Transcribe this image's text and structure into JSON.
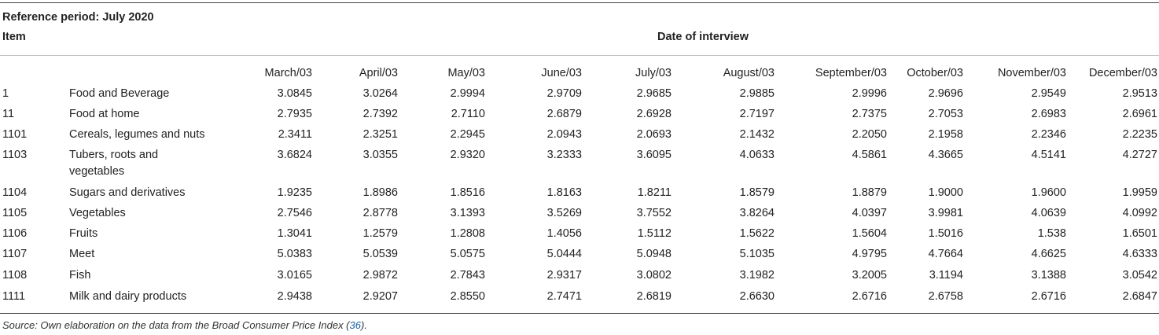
{
  "header": {
    "reference_period": "Reference period: July 2020",
    "item_label": "Item",
    "date_label": "Date of interview"
  },
  "table": {
    "columns": [
      "March/03",
      "April/03",
      "May/03",
      "June/03",
      "July/03",
      "August/03",
      "September/03",
      "October/03",
      "November/03",
      "December/03"
    ],
    "rows": [
      {
        "code": "1",
        "name": "Food and Beverage",
        "values": [
          "3.0845",
          "3.0264",
          "2.9994",
          "2.9709",
          "2.9685",
          "2.9885",
          "2.9996",
          "2.9696",
          "2.9549",
          "2.9513"
        ]
      },
      {
        "code": "11",
        "name": "Food at home",
        "values": [
          "2.7935",
          "2.7392",
          "2.7110",
          "2.6879",
          "2.6928",
          "2.7197",
          "2.7375",
          "2.7053",
          "2.6983",
          "2.6961"
        ]
      },
      {
        "code": "1101",
        "name": "Cereals, legumes and nuts",
        "values": [
          "2.3411",
          "2.3251",
          "2.2945",
          "2.0943",
          "2.0693",
          "2.1432",
          "2.2050",
          "2.1958",
          "2.2346",
          "2.2235"
        ]
      },
      {
        "code": "1103",
        "name": "Tubers, roots and",
        "name2": "vegetables",
        "values": [
          "3.6824",
          "3.0355",
          "2.9320",
          "3.2333",
          "3.6095",
          "4.0633",
          "4.5861",
          "4.3665",
          "4.5141",
          "4.2727"
        ]
      },
      {
        "code": "1104",
        "name": "Sugars and derivatives",
        "values": [
          "1.9235",
          "1.8986",
          "1.8516",
          "1.8163",
          "1.8211",
          "1.8579",
          "1.8879",
          "1.9000",
          "1.9600",
          "1.9959"
        ]
      },
      {
        "code": "1105",
        "name": "Vegetables",
        "values": [
          "2.7546",
          "2.8778",
          "3.1393",
          "3.5269",
          "3.7552",
          "3.8264",
          "4.0397",
          "3.9981",
          "4.0639",
          "4.0992"
        ]
      },
      {
        "code": "1106",
        "name": "Fruits",
        "values": [
          "1.3041",
          "1.2579",
          "1.2808",
          "1.4056",
          "1.5112",
          "1.5622",
          "1.5604",
          "1.5016",
          "1.538",
          "1.6501"
        ]
      },
      {
        "code": "1107",
        "name": "Meet",
        "values": [
          "5.0383",
          "5.0539",
          "5.0575",
          "5.0444",
          "5.0948",
          "5.1035",
          "4.9795",
          "4.7664",
          "4.6625",
          "4.6333"
        ]
      },
      {
        "code": "1108",
        "name": "Fish",
        "values": [
          "3.0165",
          "2.9872",
          "2.7843",
          "2.9317",
          "3.0802",
          "3.1982",
          "3.2005",
          "3.1194",
          "3.1388",
          "3.0542"
        ]
      },
      {
        "code": "1111",
        "name": "Milk and dairy products",
        "values": [
          "2.9438",
          "2.9207",
          "2.8550",
          "2.7471",
          "2.6819",
          "2.6630",
          "2.6716",
          "2.6758",
          "2.6716",
          "2.6847"
        ]
      }
    ]
  },
  "footer": {
    "source_prefix": "Source: Own elaboration on the data from the Broad Consumer Price Index (",
    "source_ref": "36",
    "source_suffix": ")."
  }
}
